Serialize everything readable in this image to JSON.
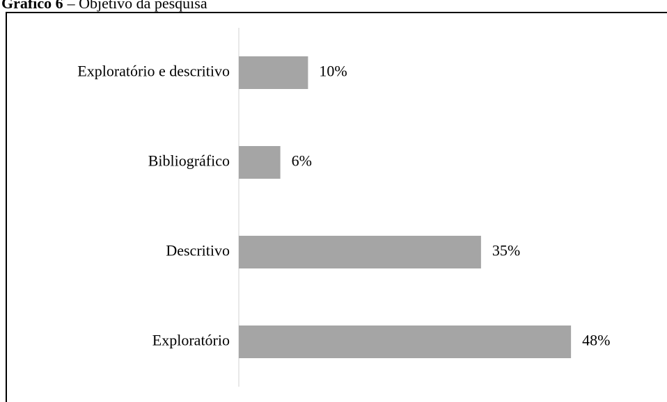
{
  "chart_data": {
    "type": "bar",
    "orientation": "horizontal",
    "title_number": "Gráfico 6",
    "title": "– Objetivo da pesquisa",
    "categories": [
      "Exploratório e descritivo",
      "Bibliográfico",
      "Descritivo",
      "Exploratório"
    ],
    "values": [
      10,
      6,
      35,
      48
    ],
    "value_labels": [
      "10%",
      "6%",
      "35%",
      "48%"
    ],
    "color": "#a5a5a5"
  }
}
